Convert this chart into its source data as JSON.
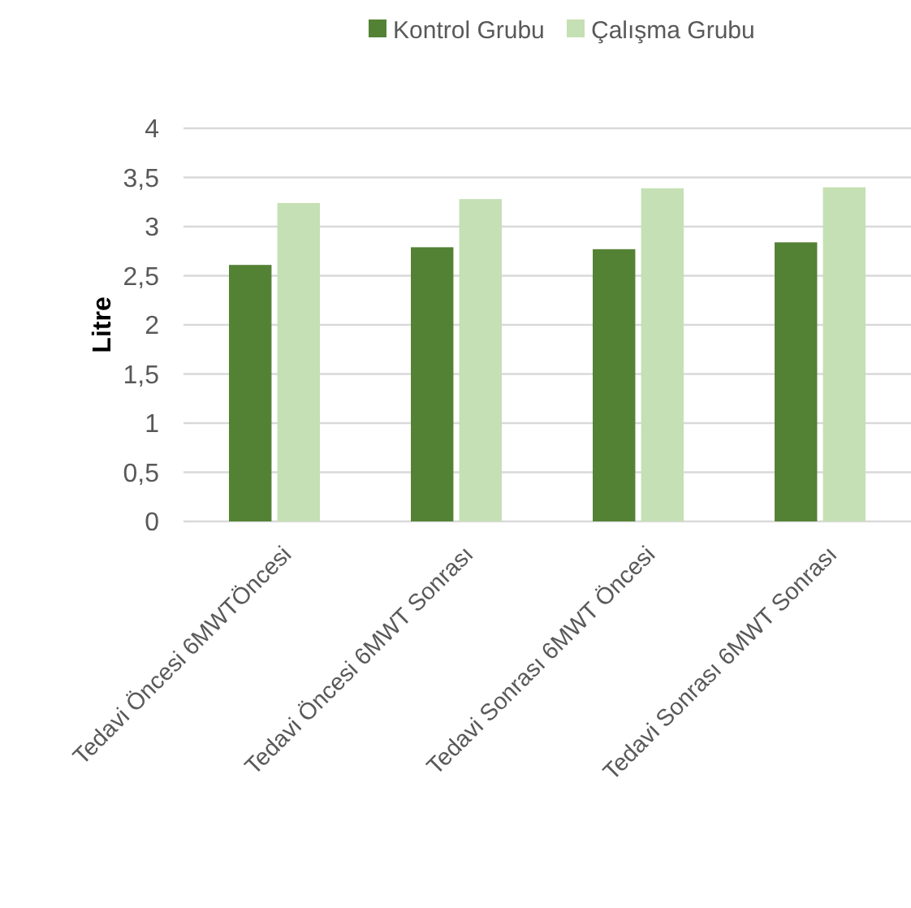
{
  "chart_data": {
    "type": "bar",
    "ylabel": "Litre",
    "categories": [
      "Tedavi Öncesi 6MWTÖncesi",
      "Tedavi Öncesi 6MWT Sonrası",
      "Tedavi Sonrası 6MWT Öncesi",
      "Tedavi Sonrası 6MWT Sonrası"
    ],
    "series": [
      {
        "name": "Kontrol Grubu",
        "color": "#548235",
        "values": [
          2.61,
          2.79,
          2.77,
          2.84
        ]
      },
      {
        "name": "Çalışma Grubu",
        "color": "#c5e0b4",
        "values": [
          3.24,
          3.28,
          3.39,
          3.4
        ]
      }
    ],
    "ylim": [
      0,
      4
    ],
    "yticks": [
      {
        "value": 0,
        "label": "0"
      },
      {
        "value": 0.5,
        "label": "0,5"
      },
      {
        "value": 1,
        "label": "1"
      },
      {
        "value": 1.5,
        "label": "1,5"
      },
      {
        "value": 2,
        "label": "2"
      },
      {
        "value": 2.5,
        "label": "2,5"
      },
      {
        "value": 3,
        "label": "3"
      },
      {
        "value": 3.5,
        "label": "3,5"
      },
      {
        "value": 4,
        "label": "4"
      }
    ],
    "grid": "y",
    "legend": "top"
  }
}
